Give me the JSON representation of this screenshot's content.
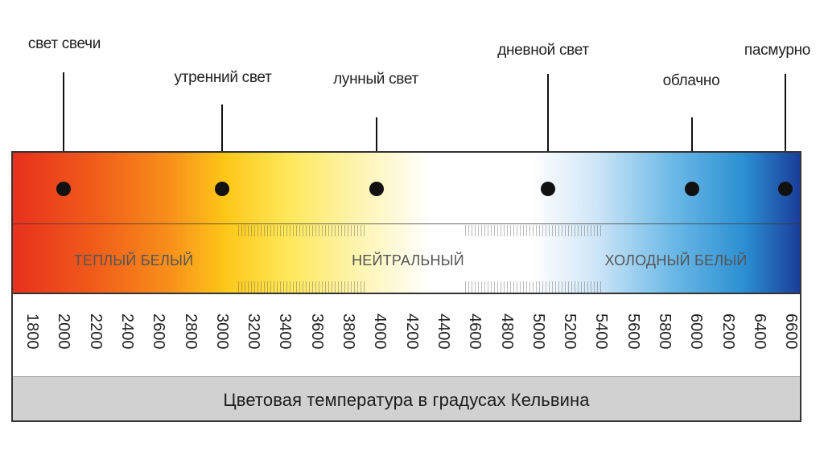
{
  "markers": [
    {
      "label": "свет свечи"
    },
    {
      "label": "утренний свет"
    },
    {
      "label": "лунный свет"
    },
    {
      "label": "дневной свет"
    },
    {
      "label": "облачно"
    },
    {
      "label": "пасмурно"
    }
  ],
  "zones": [
    {
      "label": "ТЕПЛЫЙ БЕЛЫЙ"
    },
    {
      "label": "НЕЙТРАЛЬНЫЙ"
    },
    {
      "label": "ХОЛОДНЫЙ БЕЛЫЙ"
    }
  ],
  "ticks": [
    "1800",
    "2000",
    "2200",
    "2400",
    "2600",
    "2800",
    "3000",
    "3200",
    "3400",
    "3600",
    "3800",
    "4000",
    "4200",
    "4400",
    "4600",
    "4800",
    "5000",
    "5200",
    "5400",
    "5600",
    "5800",
    "6000",
    "6200",
    "6400",
    "6600"
  ],
  "caption": "Цветовая температура в градусах Кельвина",
  "colors": {
    "warm": "#e8301e",
    "amber": "#f8901a",
    "yellow": "#fdc718",
    "neutral": "#ffffff",
    "cool": "#2b8fd2",
    "deep_blue": "#1a3d9a",
    "caption_bg": "#d1d1d1"
  }
}
